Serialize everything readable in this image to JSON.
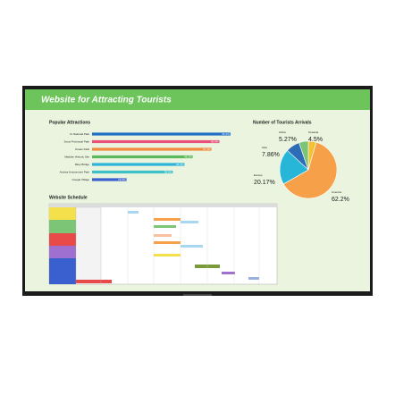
{
  "header": {
    "title": "Website for Attracting Tourists"
  },
  "schedule": {
    "title": "Website Schedule"
  },
  "chart_data": [
    {
      "type": "hbar",
      "title": "Popular Attractions",
      "categories": [
        "Yo National Park",
        "Snow Provincial Park",
        "Ocean Falls",
        "Madden Historic Site",
        "Riley Bridge",
        "Andrea Amusement Park",
        "Google Village"
      ],
      "values": [
        66.2,
        60.9,
        57.1,
        48.1,
        44.2,
        38.6,
        16.5
      ],
      "value_labels": [
        "66.2%",
        "60.9%",
        "57.1%",
        "48.1%",
        "44.2%",
        "38.6%",
        "16.5%"
      ],
      "colors": [
        "#1f6fc5",
        "#e8507a",
        "#f08a3c",
        "#5cb85c",
        "#2bb3d9",
        "#3ec0c8",
        "#3a5fcf"
      ]
    },
    {
      "type": "pie",
      "title": "Number of Tourists Arrivals",
      "categories": [
        "Oceania",
        "America",
        "Europe",
        "Asia",
        "Africa"
      ],
      "values": [
        4.5,
        62.2,
        20.17,
        7.86,
        5.27
      ],
      "value_labels": [
        "4.5%",
        "62.2%",
        "20.17%",
        "7.86%",
        "5.27%"
      ],
      "colors": [
        "#f2c230",
        "#f7a04a",
        "#27b6d8",
        "#2e6db5",
        "#7cc576"
      ]
    }
  ]
}
